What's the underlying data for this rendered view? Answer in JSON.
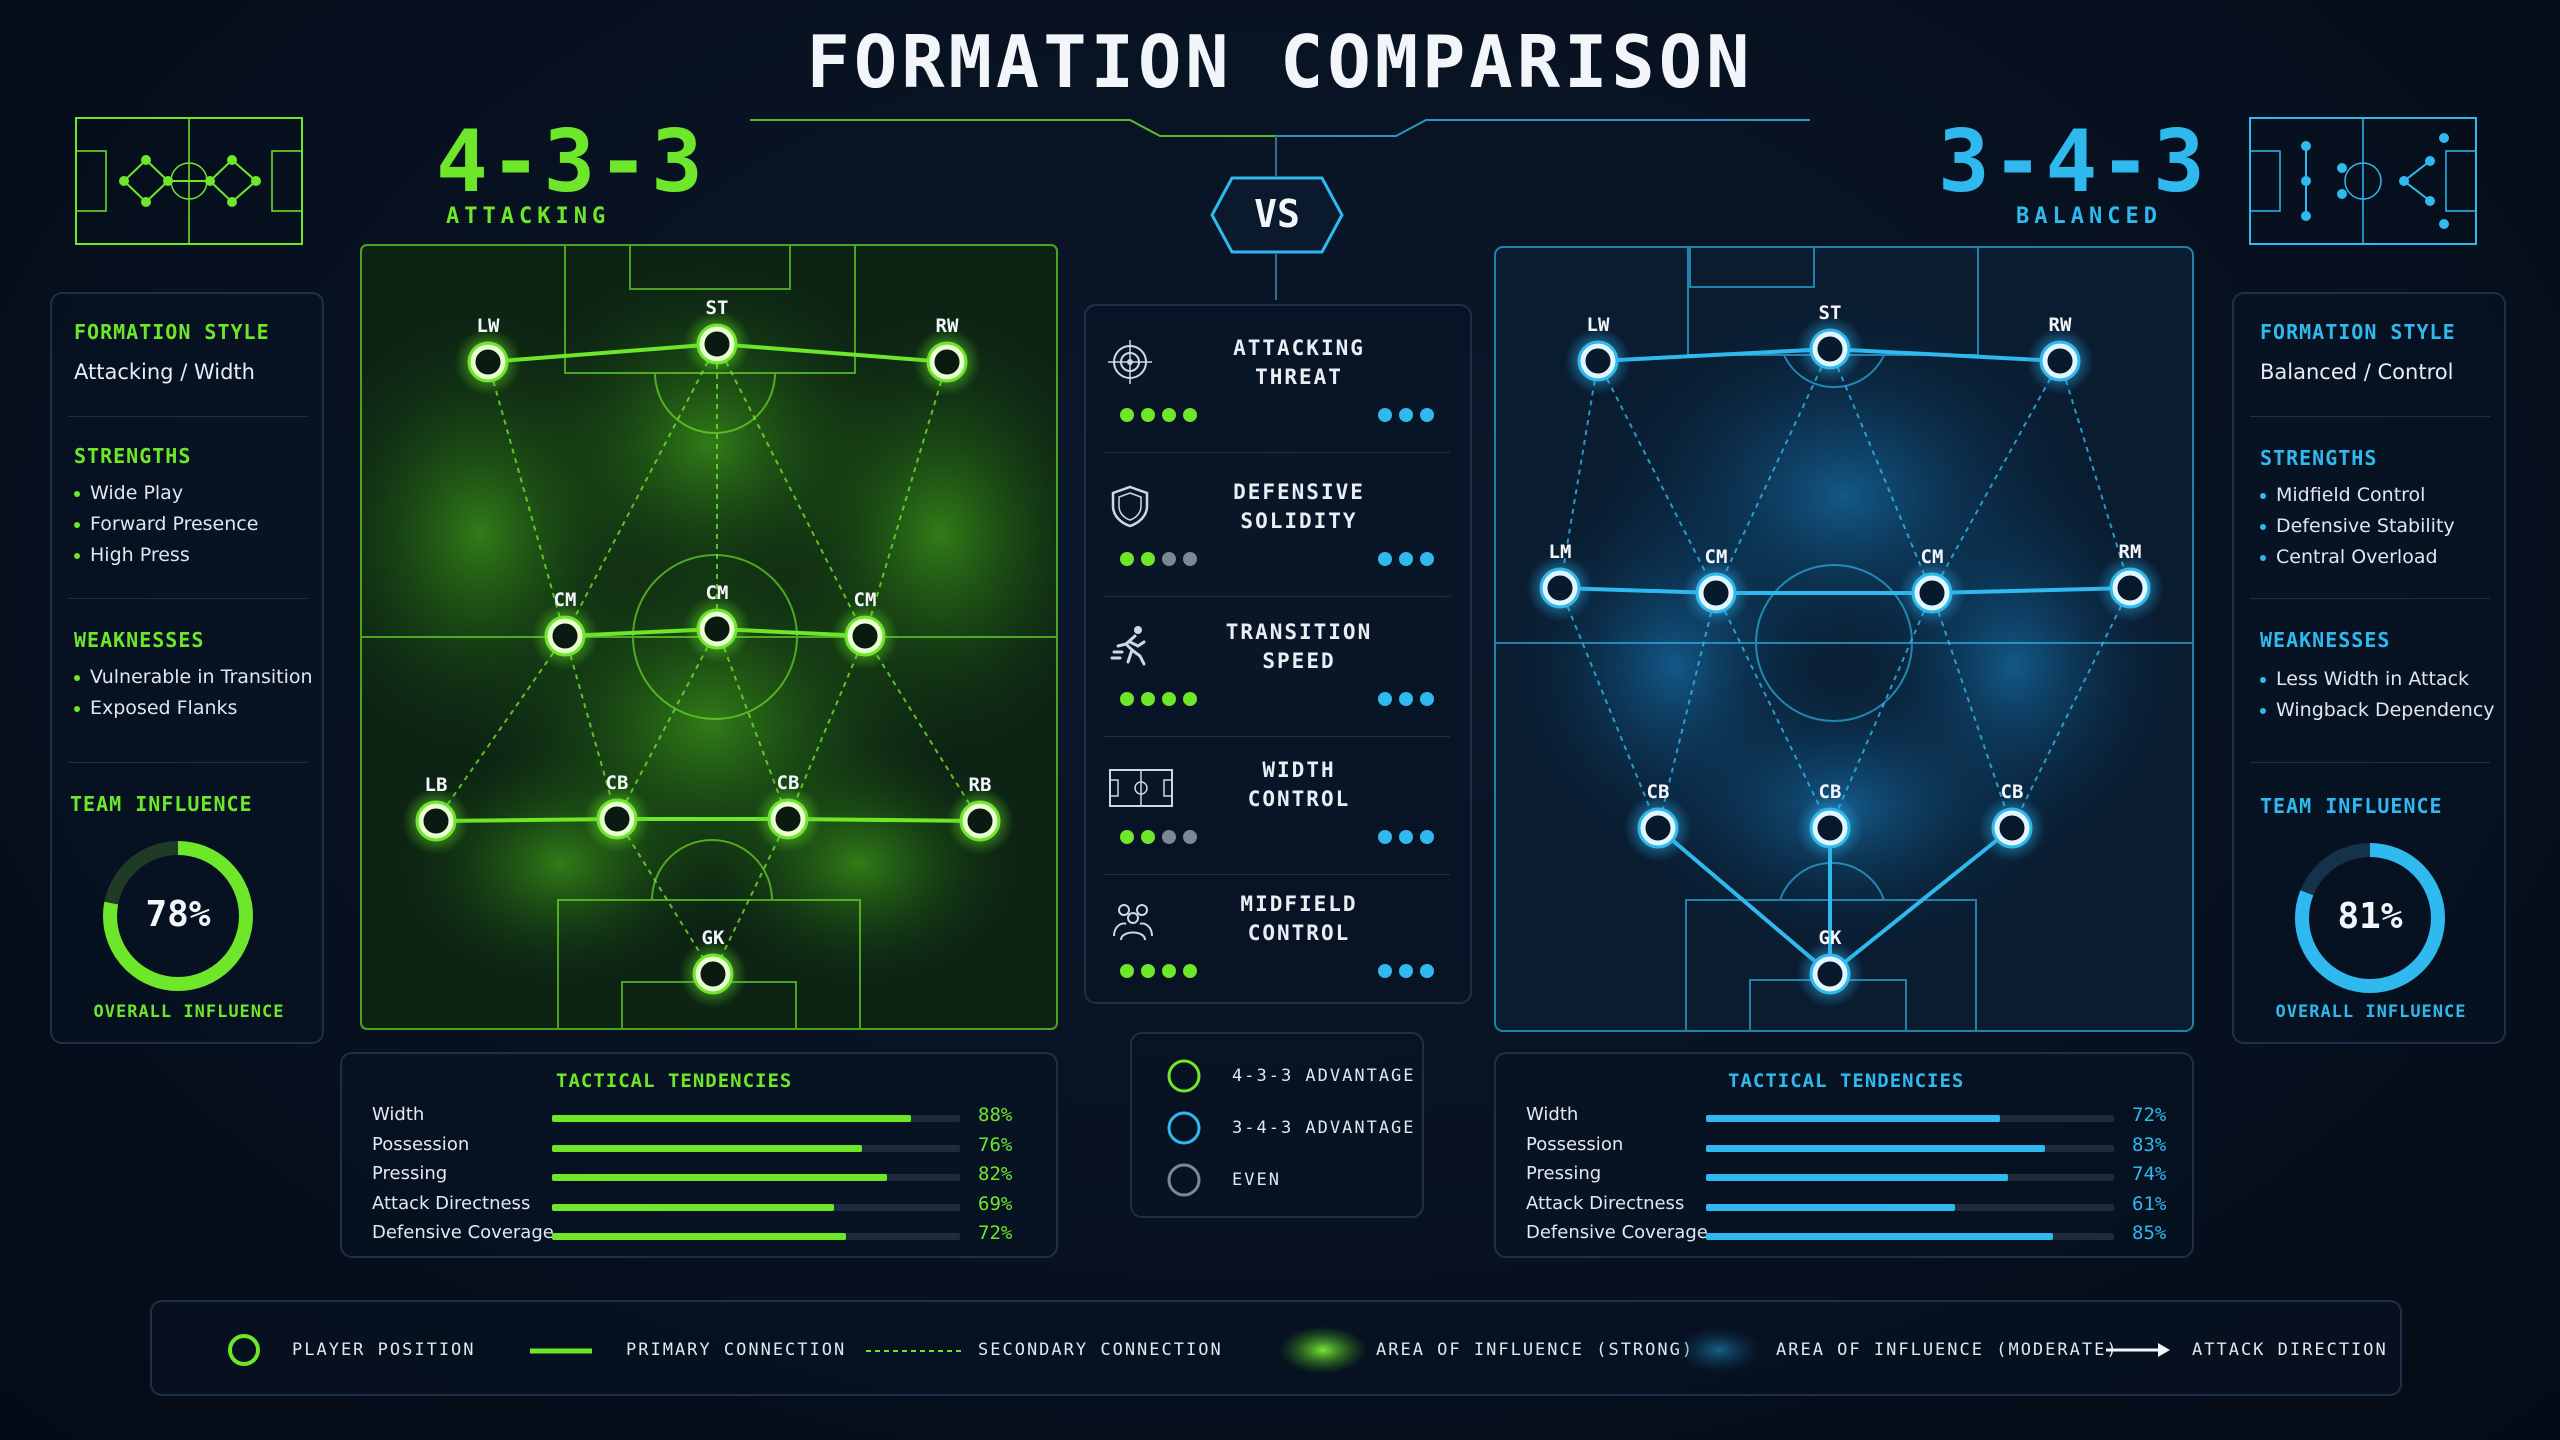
{
  "title": "FORMATION COMPARISON",
  "vs_label": "VS",
  "colors": {
    "green": "#6ee62a",
    "blue": "#2fb9ee",
    "grey": "#7b8794",
    "background": "#071120"
  },
  "left": {
    "formation": "4-3-3",
    "subtitle": "ATTACKING",
    "style_heading": "FORMATION STYLE",
    "style_value": "Attacking / Width",
    "strengths_heading": "STRENGTHS",
    "strengths": [
      "Wide Play",
      "Forward Presence",
      "High Press"
    ],
    "weaknesses_heading": "WEAKNESSES",
    "weaknesses": [
      "Vulnerable in Transition",
      "Exposed Flanks"
    ],
    "influence_heading": "TEAM INFLUENCE",
    "influence_value": "78%",
    "influence_fraction": 0.78,
    "influence_caption": "OVERALL INFLUENCE",
    "players": [
      {
        "label": "LW"
      },
      {
        "label": "ST"
      },
      {
        "label": "RW"
      },
      {
        "label": "CM"
      },
      {
        "label": "CM"
      },
      {
        "label": "CM"
      },
      {
        "label": "LB"
      },
      {
        "label": "CB"
      },
      {
        "label": "CB"
      },
      {
        "label": "RB"
      },
      {
        "label": "GK"
      }
    ],
    "tendencies_heading": "TACTICAL TENDENCIES",
    "tendencies": [
      {
        "label": "Width",
        "value": 88,
        "display": "88%"
      },
      {
        "label": "Possession",
        "value": 76,
        "display": "76%"
      },
      {
        "label": "Pressing",
        "value": 82,
        "display": "82%"
      },
      {
        "label": "Attack Directness",
        "value": 69,
        "display": "69%"
      },
      {
        "label": "Defensive Coverage",
        "value": 72,
        "display": "72%"
      }
    ]
  },
  "right": {
    "formation": "3-4-3",
    "subtitle": "BALANCED",
    "style_heading": "FORMATION STYLE",
    "style_value": "Balanced / Control",
    "strengths_heading": "STRENGTHS",
    "strengths": [
      "Midfield Control",
      "Defensive Stability",
      "Central Overload"
    ],
    "weaknesses_heading": "WEAKNESSES",
    "weaknesses": [
      "Less Width in Attack",
      "Wingback Dependency"
    ],
    "influence_heading": "TEAM INFLUENCE",
    "influence_value": "81%",
    "influence_fraction": 0.81,
    "influence_caption": "OVERALL INFLUENCE",
    "players": [
      {
        "label": "LW"
      },
      {
        "label": "ST"
      },
      {
        "label": "RW"
      },
      {
        "label": "LM"
      },
      {
        "label": "CM"
      },
      {
        "label": "CM"
      },
      {
        "label": "RM"
      },
      {
        "label": "CB"
      },
      {
        "label": "CB"
      },
      {
        "label": "CB"
      },
      {
        "label": "GK"
      }
    ],
    "tendencies_heading": "TACTICAL TENDENCIES",
    "tendencies": [
      {
        "label": "Width",
        "value": 72,
        "display": "72%"
      },
      {
        "label": "Possession",
        "value": 83,
        "display": "83%"
      },
      {
        "label": "Pressing",
        "value": 74,
        "display": "74%"
      },
      {
        "label": "Attack Directness",
        "value": 61,
        "display": "61%"
      },
      {
        "label": "Defensive Coverage",
        "value": 85,
        "display": "85%"
      }
    ]
  },
  "metrics": [
    {
      "label_line1": "ATTACKING",
      "label_line2": "THREAT",
      "icon": "target-icon",
      "left_rating": [
        "green",
        "green",
        "green",
        "green"
      ],
      "right_rating": [
        "blue",
        "blue",
        "blue"
      ]
    },
    {
      "label_line1": "DEFENSIVE",
      "label_line2": "SOLIDITY",
      "icon": "shield-icon",
      "left_rating": [
        "green",
        "green",
        "grey",
        "grey"
      ],
      "right_rating": [
        "blue",
        "blue",
        "blue"
      ]
    },
    {
      "label_line1": "TRANSITION",
      "label_line2": "SPEED",
      "icon": "runner-icon",
      "left_rating": [
        "green",
        "green",
        "green",
        "green"
      ],
      "right_rating": [
        "blue",
        "blue",
        "blue"
      ]
    },
    {
      "label_line1": "WIDTH",
      "label_line2": "CONTROL",
      "icon": "pitch-icon",
      "left_rating": [
        "green",
        "green",
        "grey",
        "grey"
      ],
      "right_rating": [
        "blue",
        "blue",
        "blue"
      ]
    },
    {
      "label_line1": "MIDFIELD",
      "label_line2": "CONTROL",
      "icon": "group-icon",
      "left_rating": [
        "green",
        "green",
        "green",
        "green"
      ],
      "right_rating": [
        "blue",
        "blue",
        "blue"
      ]
    }
  ],
  "advantage_legend": [
    {
      "label": "4-3-3 ADVANTAGE",
      "color": "green"
    },
    {
      "label": "3-4-3 ADVANTAGE",
      "color": "blue"
    },
    {
      "label": "EVEN",
      "color": "grey"
    }
  ],
  "legend": {
    "player_position": "PLAYER POSITION",
    "primary_connection": "PRIMARY CONNECTION",
    "secondary_connection": "SECONDARY CONNECTION",
    "influence_strong": "AREA OF INFLUENCE (STRONG)",
    "influence_moderate": "AREA OF INFLUENCE (MODERATE)",
    "attack_direction": "ATTACK DIRECTION"
  }
}
